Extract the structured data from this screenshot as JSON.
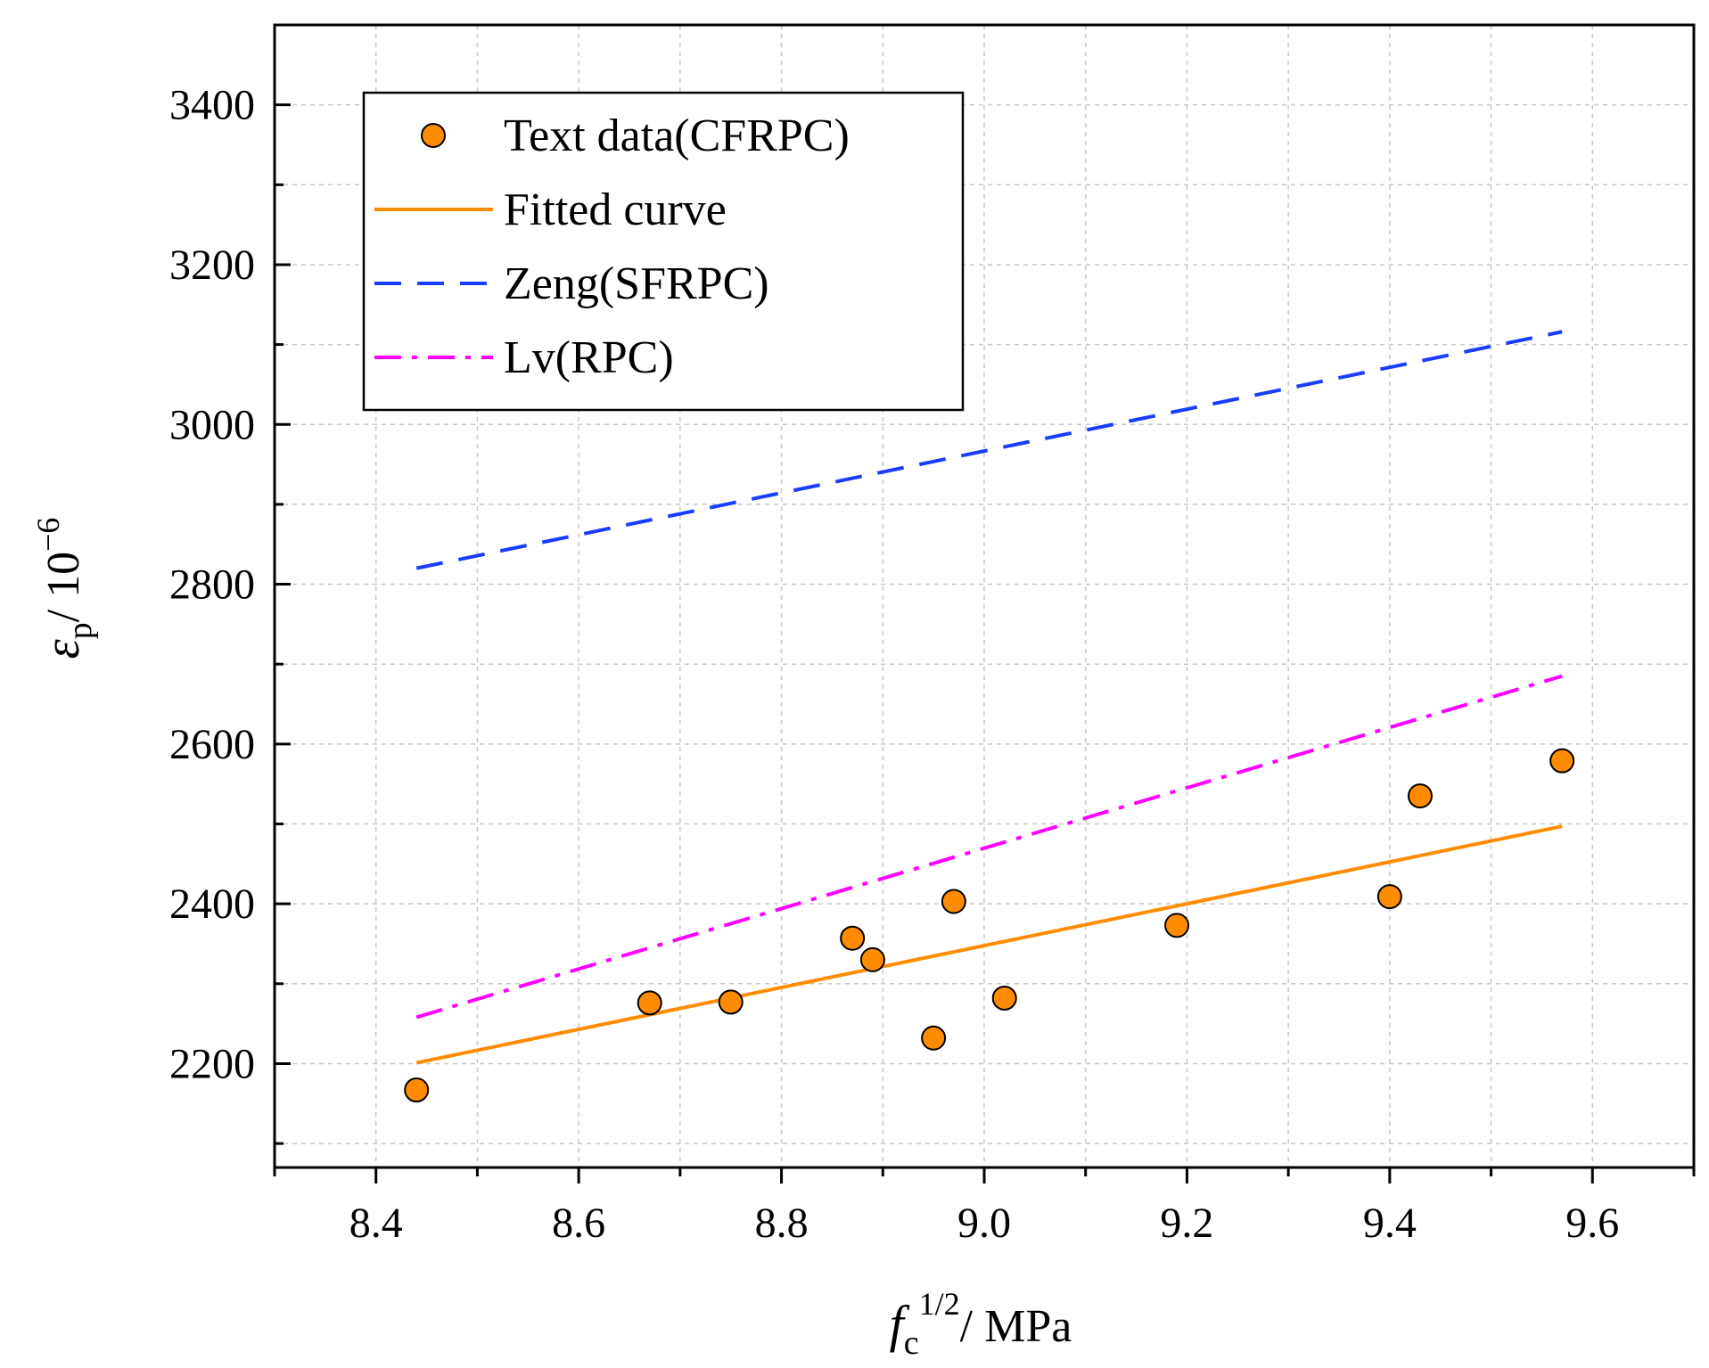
{
  "chart_data": {
    "type": "scatter",
    "title": "",
    "xlabel": {
      "base": "f",
      "sub": "c",
      "sup": "1/2",
      "unit": "/ MPa"
    },
    "ylabel": {
      "base": "ε",
      "sub": "p",
      "unit": "/ 10",
      "sup": "−6"
    },
    "xlim": [
      8.3,
      9.7
    ],
    "ylim": [
      2070,
      3500
    ],
    "xticks": [
      8.4,
      8.6,
      8.8,
      9.0,
      9.2,
      9.4,
      9.6
    ],
    "xtick_labels": [
      "8.4",
      "8.6",
      "8.8",
      "9.0",
      "9.2",
      "9.4",
      "9.6"
    ],
    "yticks": [
      2200,
      2400,
      2600,
      2800,
      3000,
      3200,
      3400
    ],
    "ytick_labels": [
      "2200",
      "2400",
      "2600",
      "2800",
      "3000",
      "3200",
      "3400"
    ],
    "grid": true,
    "legend_position": "top-left",
    "series": [
      {
        "name": "Text data(CFRPC)",
        "kind": "scatter",
        "color": "#ff8c00",
        "x": [
          8.44,
          8.67,
          8.75,
          8.87,
          8.89,
          8.95,
          8.97,
          9.02,
          9.19,
          9.4,
          9.43,
          9.57
        ],
        "y": [
          2167,
          2276,
          2277,
          2357,
          2330,
          2232,
          2403,
          2282,
          2373,
          2409,
          2535,
          2579
        ]
      },
      {
        "name": "Fitted curve",
        "kind": "line",
        "style": "solid",
        "color": "#ff8c00",
        "x": [
          8.44,
          9.57
        ],
        "y": [
          2201,
          2497
        ]
      },
      {
        "name": "Zeng(SFRPC)",
        "kind": "line",
        "style": "dashed",
        "color": "#1a3cff",
        "x": [
          8.44,
          9.57
        ],
        "y": [
          2820,
          3116
        ]
      },
      {
        "name": "Lv(RPC)",
        "kind": "line",
        "style": "dashdot",
        "color": "#ff00ff",
        "x": [
          8.44,
          9.57
        ],
        "y": [
          2258,
          2685
        ]
      }
    ]
  }
}
